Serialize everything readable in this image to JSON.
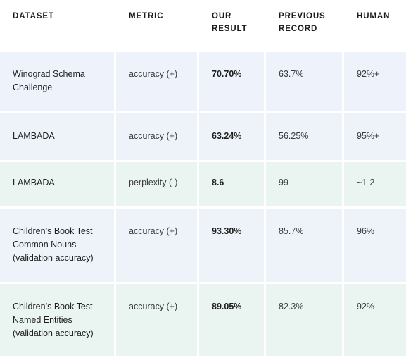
{
  "headers": [
    "DATASET",
    "METRIC",
    "OUR RESULT",
    "PREVIOUS RECORD",
    "HUMAN"
  ],
  "header_lines": {
    "our_result": [
      "OUR",
      "RESULT"
    ],
    "previous_record": [
      "PREVIOUS",
      "RECORD"
    ]
  },
  "rows": [
    {
      "dataset_lines": [
        "Winograd Schema",
        "Challenge"
      ],
      "metric": "accuracy (+)",
      "our_result": "70.70%",
      "previous_record": "63.7%",
      "human": "92%+"
    },
    {
      "dataset_lines": [
        "LAMBADA"
      ],
      "metric": "accuracy (+)",
      "our_result": "63.24%",
      "previous_record": "56.25%",
      "human": "95%+"
    },
    {
      "dataset_lines": [
        "LAMBADA"
      ],
      "metric": "perplexity (-)",
      "our_result": "8.6",
      "previous_record": "99",
      "human": "~1-2"
    },
    {
      "dataset_lines": [
        "Children’s Book Test",
        "Common Nouns",
        "(validation accuracy)"
      ],
      "metric": "accuracy (+)",
      "our_result": "93.30%",
      "previous_record": "85.7%",
      "human": "96%"
    },
    {
      "dataset_lines": [
        "Children’s Book Test",
        "Named Entities",
        "(validation accuracy)"
      ],
      "metric": "accuracy (+)",
      "our_result": "89.05%",
      "previous_record": "82.3%",
      "human": "92%"
    }
  ]
}
